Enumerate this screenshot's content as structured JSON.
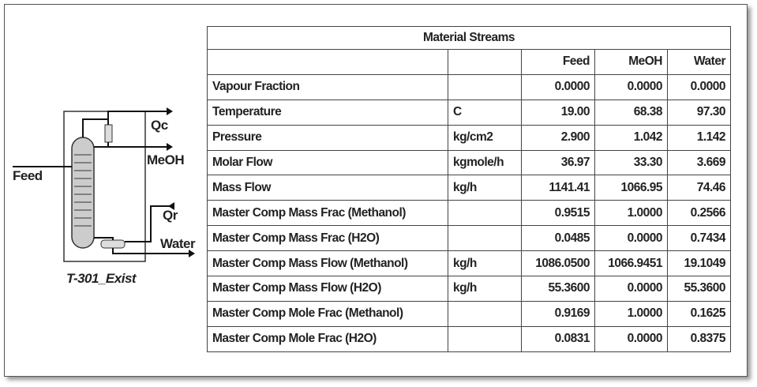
{
  "diagram": {
    "feed": "Feed",
    "qc": "Qc",
    "meoh": "MeOH",
    "qr": "Qr",
    "water": "Water",
    "name": "T-301_Exist"
  },
  "table": {
    "title": "Material Streams",
    "header": [
      "",
      "",
      "Feed",
      "MeOH",
      "Water"
    ],
    "rows": [
      [
        "Vapour Fraction",
        "",
        "0.0000",
        "0.0000",
        "0.0000"
      ],
      [
        "Temperature",
        "C",
        "19.00",
        "68.38",
        "97.30"
      ],
      [
        "Pressure",
        "kg/cm2",
        "2.900",
        "1.042",
        "1.142"
      ],
      [
        "Molar Flow",
        "kgmole/h",
        "36.97",
        "33.30",
        "3.669"
      ],
      [
        "Mass Flow",
        "kg/h",
        "1141.41",
        "1066.95",
        "74.46"
      ],
      [
        "Master Comp Mass Frac (Methanol)",
        "",
        "0.9515",
        "1.0000",
        "0.2566"
      ],
      [
        "Master Comp Mass Frac (H2O)",
        "",
        "0.0485",
        "0.0000",
        "0.7434"
      ],
      [
        "Master Comp Mass Flow (Methanol)",
        "kg/h",
        "1086.0500",
        "1066.9451",
        "19.1049"
      ],
      [
        "Master Comp Mass Flow (H2O)",
        "kg/h",
        "55.3600",
        "0.0000",
        "55.3600"
      ],
      [
        "Master Comp Mole Frac (Methanol)",
        "",
        "0.9169",
        "1.0000",
        "0.1625"
      ],
      [
        "Master Comp Mole Frac (H2O)",
        "",
        "0.0831",
        "0.0000",
        "0.8375"
      ]
    ]
  }
}
